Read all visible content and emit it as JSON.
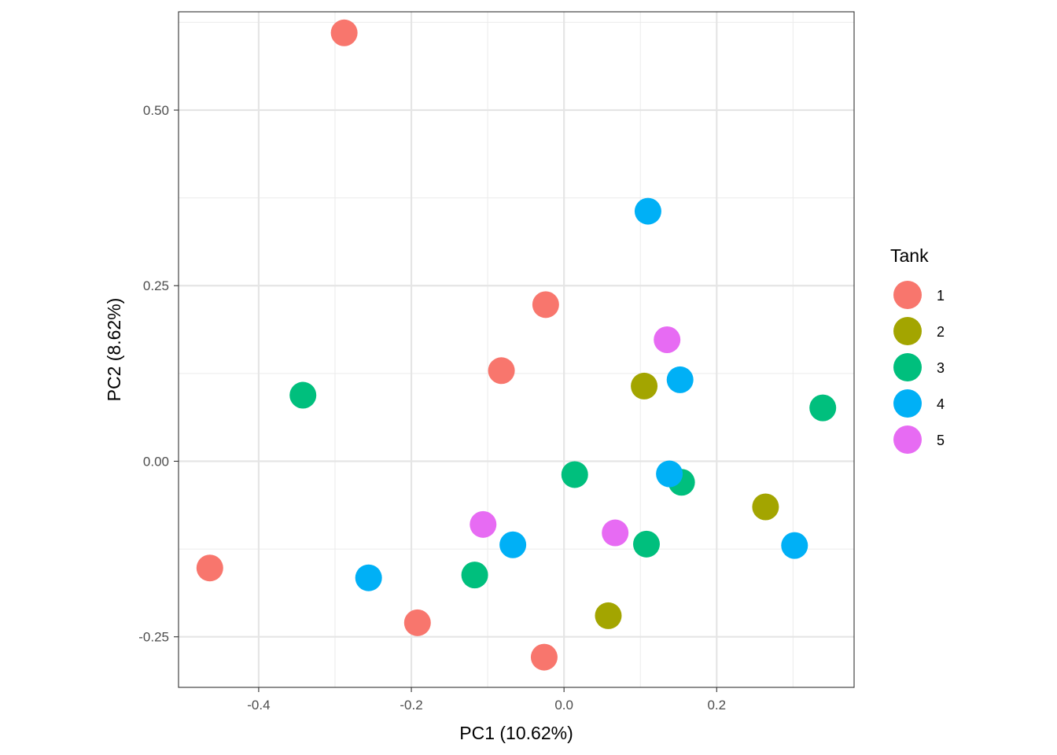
{
  "chart_data": {
    "type": "scatter",
    "title": "",
    "xlabel": "PC1 (10.62%)",
    "ylabel": "PC2 (8.62%)",
    "xlim": [
      -0.505,
      0.38
    ],
    "ylim": [
      -0.322,
      0.64
    ],
    "x_ticks": [
      -0.4,
      -0.2,
      0.0,
      0.2
    ],
    "x_tick_labels": [
      "-0.4",
      "-0.2",
      "0.0",
      "0.2"
    ],
    "y_ticks": [
      -0.25,
      0.0,
      0.25,
      0.5
    ],
    "y_tick_labels": [
      "-0.25",
      "0.00",
      "0.25",
      "0.50"
    ],
    "x_minor_ticks": [
      -0.3,
      -0.1,
      0.1,
      0.3
    ],
    "y_minor_ticks": [
      -0.125,
      0.125,
      0.375,
      0.625
    ],
    "grid": true,
    "legend": {
      "title": "Tank",
      "placement": "right",
      "entries": [
        {
          "label": "1",
          "color": "#F8766D"
        },
        {
          "label": "2",
          "color": "#A3A500"
        },
        {
          "label": "3",
          "color": "#00BF7D"
        },
        {
          "label": "4",
          "color": "#00B0F6"
        },
        {
          "label": "5",
          "color": "#E76BF3"
        }
      ]
    },
    "series": [
      {
        "name": "1",
        "color": "#F8766D",
        "points": [
          {
            "x": -0.288,
            "y": 0.61
          },
          {
            "x": -0.464,
            "y": -0.152
          },
          {
            "x": -0.192,
            "y": -0.23
          },
          {
            "x": -0.024,
            "y": 0.223
          },
          {
            "x": -0.082,
            "y": 0.129
          },
          {
            "x": -0.026,
            "y": -0.279
          }
        ]
      },
      {
        "name": "2",
        "color": "#A3A500",
        "points": [
          {
            "x": 0.105,
            "y": 0.107
          },
          {
            "x": 0.264,
            "y": -0.065
          },
          {
            "x": 0.058,
            "y": -0.22
          }
        ]
      },
      {
        "name": "3",
        "color": "#00BF7D",
        "points": [
          {
            "x": -0.342,
            "y": 0.094
          },
          {
            "x": 0.339,
            "y": 0.076
          },
          {
            "x": 0.014,
            "y": -0.019
          },
          {
            "x": 0.154,
            "y": -0.03
          },
          {
            "x": 0.108,
            "y": -0.118
          },
          {
            "x": -0.117,
            "y": -0.162
          }
        ]
      },
      {
        "name": "4",
        "color": "#00B0F6",
        "points": [
          {
            "x": 0.11,
            "y": 0.356
          },
          {
            "x": 0.152,
            "y": 0.116
          },
          {
            "x": 0.138,
            "y": -0.018
          },
          {
            "x": -0.067,
            "y": -0.119
          },
          {
            "x": -0.256,
            "y": -0.166
          },
          {
            "x": 0.302,
            "y": -0.12
          }
        ]
      },
      {
        "name": "5",
        "color": "#E76BF3",
        "points": [
          {
            "x": 0.135,
            "y": 0.173
          },
          {
            "x": -0.106,
            "y": -0.09
          },
          {
            "x": 0.067,
            "y": -0.102
          }
        ]
      }
    ]
  }
}
